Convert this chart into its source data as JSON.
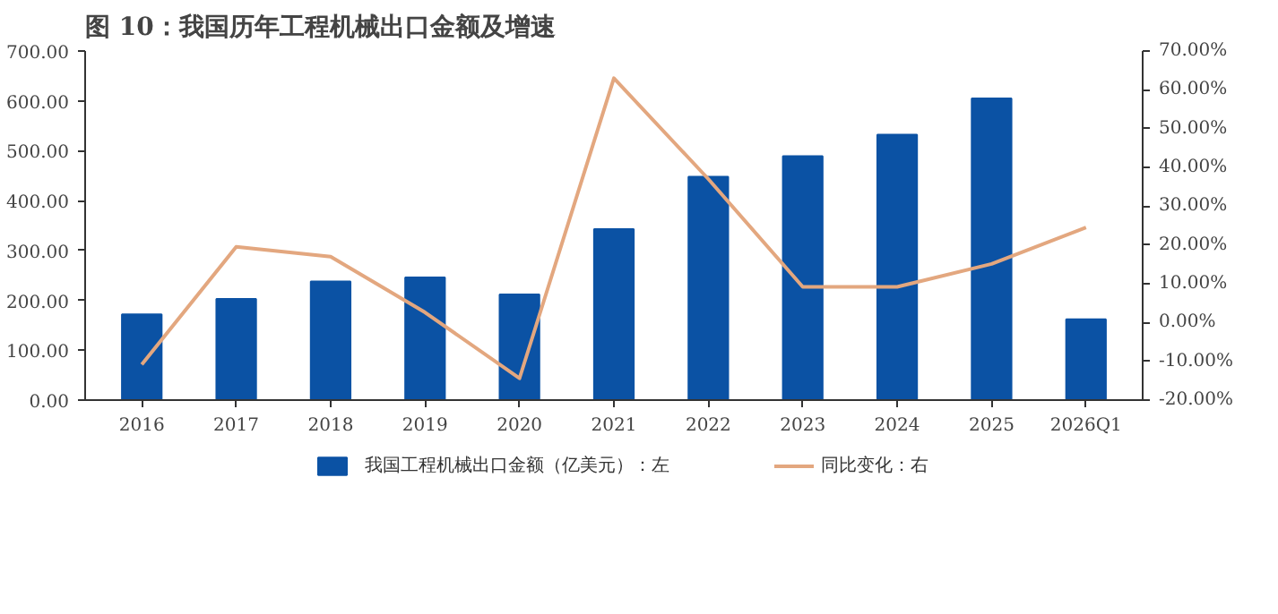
{
  "chart_data": {
    "type": "bar",
    "title": "图 10：我国历年工程机械出口金额及增速",
    "categories": [
      "2016",
      "2017",
      "2018",
      "2019",
      "2020",
      "2021",
      "2022",
      "2023",
      "2024",
      "2025",
      "2026Q1"
    ],
    "series": [
      {
        "name": "我国工程机械出口金额（亿美元）：左",
        "color": "#0b52a4",
        "values": [
          172,
          203,
          238,
          246,
          212,
          343,
          448,
          489,
          532,
          605,
          162
        ]
      },
      {
        "name": "同比变化：右",
        "type": "line",
        "axis": "y2",
        "color": "#e3a77f",
        "values": [
          -10.8,
          19.5,
          17,
          2.6,
          -14.4,
          63,
          37,
          9.2,
          9.2,
          15.1,
          24.5
        ]
      }
    ],
    "ylim": [
      0,
      700
    ],
    "yticks": [
      {
        "value": 0,
        "label": "0.00"
      },
      {
        "value": 100,
        "label": "100.00"
      },
      {
        "value": 200,
        "label": "200.00"
      },
      {
        "value": 300,
        "label": "300.00"
      },
      {
        "value": 400,
        "label": "400.00"
      },
      {
        "value": 500,
        "label": "500.00"
      },
      {
        "value": 600,
        "label": "600.00"
      },
      {
        "value": 700,
        "label": "700.00"
      }
    ],
    "y2lim": [
      -20,
      70
    ],
    "y2ticks": [
      {
        "value": -20,
        "label": "-20.00%"
      },
      {
        "value": -10,
        "label": "-10.00%"
      },
      {
        "value": 0,
        "label": "0.00%"
      },
      {
        "value": 10,
        "label": "10.00%"
      },
      {
        "value": 20,
        "label": "20.00%"
      },
      {
        "value": 30,
        "label": "30.00%"
      },
      {
        "value": 40,
        "label": "40.00%"
      },
      {
        "value": 50,
        "label": "50.00%"
      },
      {
        "value": 60,
        "label": "60.00%"
      },
      {
        "value": 70,
        "label": "70.00%"
      }
    ],
    "grid": false,
    "legend": "bottom"
  }
}
